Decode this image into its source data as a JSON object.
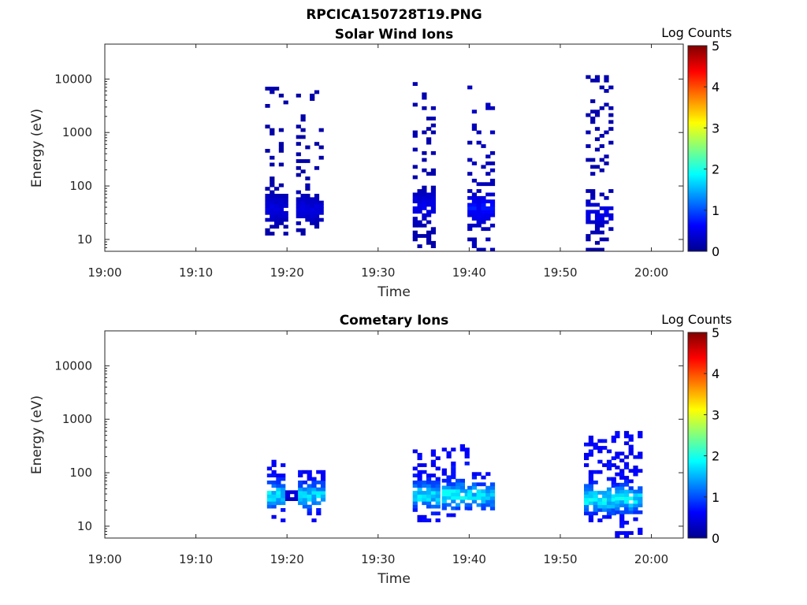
{
  "figure_title": "RPCICA150728T19.PNG",
  "colors": {
    "colormap": [
      "#00008f",
      "#0000ff",
      "#0080ff",
      "#00ffff",
      "#80ff80",
      "#ffff00",
      "#ff8000",
      "#ff0000",
      "#800000"
    ]
  },
  "chart_data": [
    {
      "type": "heatmap",
      "title": "Solar Wind Ions",
      "xlabel": "Time",
      "ylabel": "Energy (eV)",
      "x_ticks": [
        "19:00",
        "19:10",
        "19:20",
        "19:30",
        "19:40",
        "19:50",
        "20:00"
      ],
      "y_ticks": [
        "10",
        "100",
        "1000",
        "10000"
      ],
      "y_scale": "log",
      "y_range_eV": [
        6,
        45000
      ],
      "x_range_min": [
        0,
        63.5
      ],
      "colorbar": {
        "label": "Log Counts",
        "ticks": [
          "0",
          "1",
          "2",
          "3",
          "4",
          "5"
        ],
        "range": [
          0,
          5
        ]
      },
      "clusters": [
        {
          "t_min": [
            17.6,
            20.0
          ],
          "peak_e_eV": 35,
          "peak_logc": 0.5,
          "e_max_eV": 7000,
          "e_min_eV": 12
        },
        {
          "t_min": [
            21.0,
            23.8
          ],
          "peak_e_eV": 35,
          "peak_logc": 0.5,
          "e_max_eV": 6000,
          "e_min_eV": 12
        },
        {
          "t_min": [
            33.8,
            36.2
          ],
          "peak_e_eV": 40,
          "peak_logc": 0.6,
          "e_max_eV": 8000,
          "e_min_eV": 6
        },
        {
          "t_min": [
            39.8,
            42.6
          ],
          "peak_e_eV": 35,
          "peak_logc": 0.8,
          "e_max_eV": 7000,
          "e_min_eV": 6
        },
        {
          "t_min": [
            52.8,
            55.6
          ],
          "peak_e_eV": 30,
          "peak_logc": 0.6,
          "e_max_eV": 11000,
          "e_min_eV": 6
        }
      ]
    },
    {
      "type": "heatmap",
      "title": "Cometary Ions",
      "xlabel": "Time",
      "ylabel": "Energy (eV)",
      "x_ticks": [
        "19:00",
        "19:10",
        "19:20",
        "19:30",
        "19:40",
        "19:50",
        "20:00"
      ],
      "y_ticks": [
        "10",
        "100",
        "1000",
        "10000"
      ],
      "y_scale": "log",
      "y_range_eV": [
        6,
        45000
      ],
      "x_range_min": [
        0,
        63.5
      ],
      "colorbar": {
        "label": "Log Counts",
        "ticks": [
          "0",
          "1",
          "2",
          "3",
          "4",
          "5"
        ],
        "range": [
          0,
          5
        ]
      },
      "clusters": [
        {
          "t_min": [
            17.8,
            19.8
          ],
          "peak_e_eV": 35,
          "peak_logc": 2.0,
          "e_max_eV": 200,
          "e_min_eV": 12
        },
        {
          "t_min": [
            19.8,
            21.2
          ],
          "peak_e_eV": 40,
          "peak_logc": 0.5,
          "e_max_eV": 45,
          "e_min_eV": 30
        },
        {
          "t_min": [
            21.2,
            23.8
          ],
          "peak_e_eV": 35,
          "peak_logc": 1.9,
          "e_max_eV": 100,
          "e_min_eV": 12
        },
        {
          "t_min": [
            33.8,
            36.6
          ],
          "peak_e_eV": 35,
          "peak_logc": 2.0,
          "e_max_eV": 250,
          "e_min_eV": 12
        },
        {
          "t_min": [
            37.0,
            39.8
          ],
          "peak_e_eV": 35,
          "peak_logc": 2.1,
          "e_max_eV": 300,
          "e_min_eV": 15
        },
        {
          "t_min": [
            39.8,
            42.6
          ],
          "peak_e_eV": 35,
          "peak_logc": 1.9,
          "e_max_eV": 90,
          "e_min_eV": 20
        },
        {
          "t_min": [
            52.6,
            56.0
          ],
          "peak_e_eV": 30,
          "peak_logc": 2.1,
          "e_max_eV": 450,
          "e_min_eV": 12
        },
        {
          "t_min": [
            56.0,
            58.6
          ],
          "peak_e_eV": 30,
          "peak_logc": 2.0,
          "e_max_eV": 550,
          "e_min_eV": 6
        }
      ]
    }
  ]
}
